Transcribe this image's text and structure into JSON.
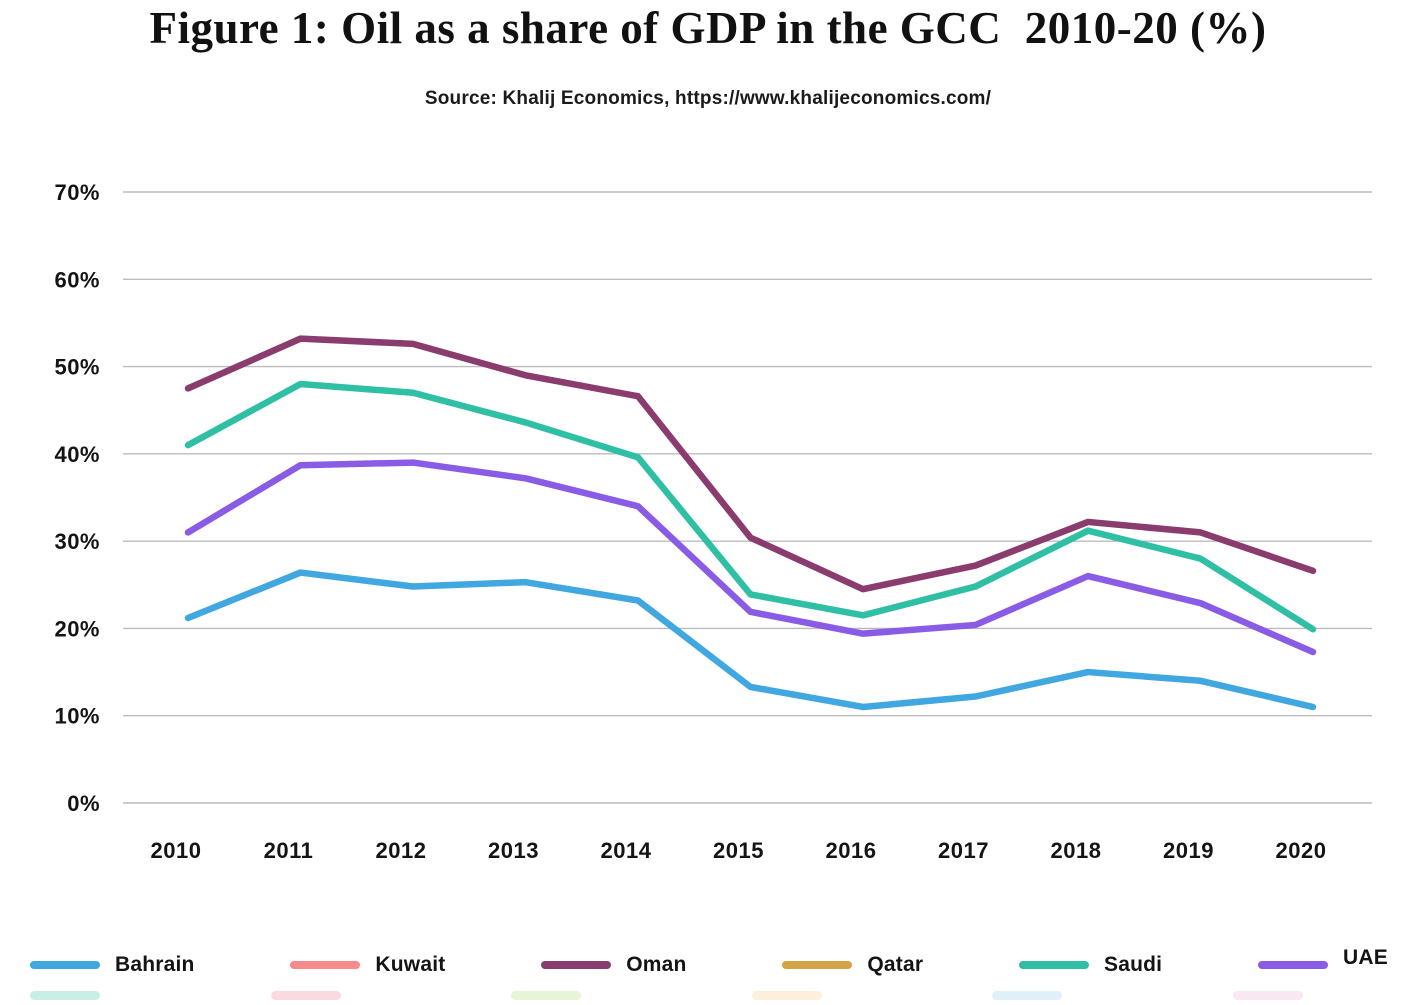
{
  "title": "Figure 1: Oil as a share of GDP in the GCC  2010-20 (%)",
  "source": "Source: Khalij Economics, https://www.khalijeconomics.com/",
  "chart_data": {
    "type": "line",
    "title": "Figure 1: Oil as a share of GDP in the GCC  2010-20 (%)",
    "xlabel": "",
    "ylabel": "",
    "x": [
      2010,
      2011,
      2012,
      2013,
      2014,
      2015,
      2016,
      2017,
      2018,
      2019,
      2020
    ],
    "x_tick_labels": [
      "2010",
      "2011",
      "2012",
      "2013",
      "2014",
      "2015",
      "2016",
      "2017",
      "2018",
      "2019",
      "2020"
    ],
    "y_tick_labels": [
      "0%",
      "10%",
      "20%",
      "30%",
      "40%",
      "50%",
      "60%",
      "70%"
    ],
    "ylim": [
      0,
      70
    ],
    "grid": "horizontal",
    "gridline_color": "#bcbcbc",
    "legend_position": "bottom",
    "series": [
      {
        "name": "Bahrain",
        "color": "#41a7e0",
        "visible": true,
        "values": [
          21.2,
          26.4,
          24.8,
          25.3,
          23.2,
          13.3,
          11.0,
          12.2,
          15.0,
          14.0,
          11.0
        ]
      },
      {
        "name": "Kuwait",
        "color": "#f78a8a",
        "visible": false,
        "values": []
      },
      {
        "name": "Oman",
        "color": "#8a3c6e",
        "visible": true,
        "values": [
          47.5,
          53.2,
          52.6,
          49.0,
          46.6,
          30.4,
          24.5,
          27.2,
          32.2,
          31.0,
          26.6
        ]
      },
      {
        "name": "Qatar",
        "color": "#d2a445",
        "visible": false,
        "values": []
      },
      {
        "name": "Saudi",
        "color": "#2fbfa4",
        "visible": true,
        "values": [
          41.0,
          48.0,
          47.0,
          43.6,
          39.6,
          23.9,
          21.5,
          24.8,
          31.2,
          28.0,
          19.9
        ]
      },
      {
        "name": "UAE",
        "color": "#8a5ce6",
        "visible": true,
        "values": [
          31.0,
          38.7,
          39.0,
          37.2,
          34.0,
          21.9,
          19.4,
          20.4,
          26.0,
          22.9,
          17.3
        ]
      }
    ]
  },
  "legend": {
    "items": [
      {
        "label": "Bahrain",
        "color": "#41a7e0"
      },
      {
        "label": "Kuwait",
        "color": "#f78a8a"
      },
      {
        "label": "Oman",
        "color": "#8a3c6e"
      },
      {
        "label": "Qatar",
        "color": "#d2a445"
      },
      {
        "label": "Saudi",
        "color": "#2fbfa4"
      },
      {
        "label": "UAE",
        "color": "#8a5ce6"
      }
    ],
    "partial_second_row_colors": [
      "#8fe0cc",
      "#f8b6c0",
      "#cdeab0",
      "#fce0b8",
      "#bfe2f8",
      "#f3cfe6"
    ]
  }
}
